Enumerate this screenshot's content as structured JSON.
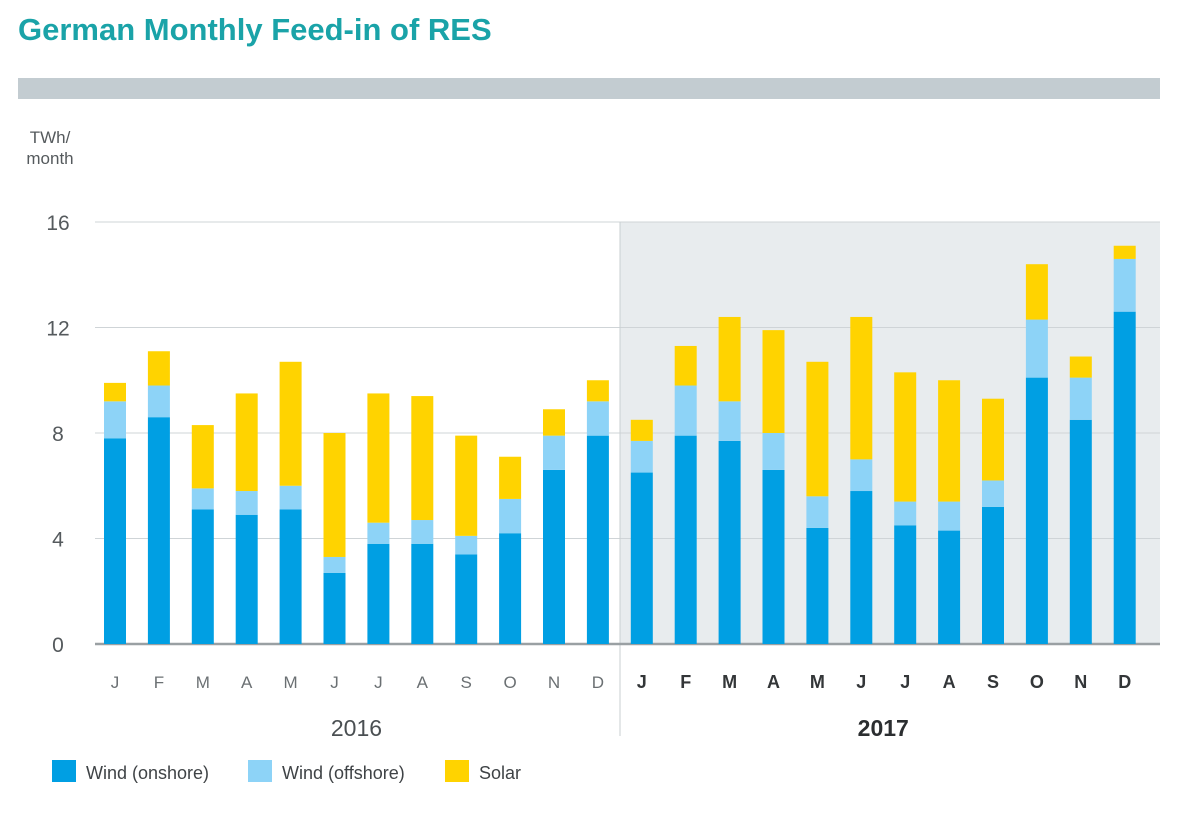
{
  "title": "German Monthly Feed-in of RES",
  "colors": {
    "title": "#1aa3a8",
    "onshore": "#009fe3",
    "offshore": "#8dd3f7",
    "solar": "#ffd300",
    "highlight_bg": "#e8ecee",
    "grid": "#cfd4d7",
    "axis": "#9aa0a3"
  },
  "chart_data": {
    "type": "bar",
    "stacked": true,
    "title": "German Monthly Feed-in of RES",
    "ylabel": "TWh/\nmonth",
    "ylim": [
      0,
      16
    ],
    "yticks": [
      0,
      4,
      8,
      12,
      16
    ],
    "grid": true,
    "legend_position": "bottom-left",
    "categories": [
      "J",
      "F",
      "M",
      "A",
      "M",
      "J",
      "J",
      "A",
      "S",
      "O",
      "N",
      "D",
      "J",
      "F",
      "M",
      "A",
      "M",
      "J",
      "J",
      "A",
      "S",
      "O",
      "N",
      "D"
    ],
    "groups": [
      {
        "label": "2016",
        "start": 0,
        "end": 11,
        "bold": false,
        "highlight": false
      },
      {
        "label": "2017",
        "start": 12,
        "end": 23,
        "bold": true,
        "highlight": true
      }
    ],
    "series": [
      {
        "name": "Wind (onshore)",
        "color": "#009fe3",
        "values": [
          7.8,
          8.6,
          5.1,
          4.9,
          5.1,
          2.7,
          3.8,
          3.8,
          3.4,
          4.2,
          6.6,
          7.9,
          6.5,
          7.9,
          7.7,
          6.6,
          4.4,
          5.8,
          4.5,
          4.3,
          5.2,
          10.1,
          8.5,
          12.6
        ]
      },
      {
        "name": "Wind (offshore)",
        "color": "#8dd3f7",
        "values": [
          1.4,
          1.2,
          0.8,
          0.9,
          0.9,
          0.6,
          0.8,
          0.9,
          0.7,
          1.3,
          1.3,
          1.3,
          1.2,
          1.9,
          1.5,
          1.4,
          1.2,
          1.2,
          0.9,
          1.1,
          1.0,
          2.2,
          1.6,
          2.0
        ]
      },
      {
        "name": "Solar",
        "color": "#ffd300",
        "values": [
          0.7,
          1.3,
          2.4,
          3.7,
          4.7,
          4.7,
          4.9,
          4.7,
          3.8,
          1.6,
          1.0,
          0.8,
          0.8,
          1.5,
          3.2,
          3.9,
          5.1,
          5.4,
          4.9,
          4.6,
          3.1,
          2.1,
          0.8,
          0.5
        ]
      }
    ]
  }
}
